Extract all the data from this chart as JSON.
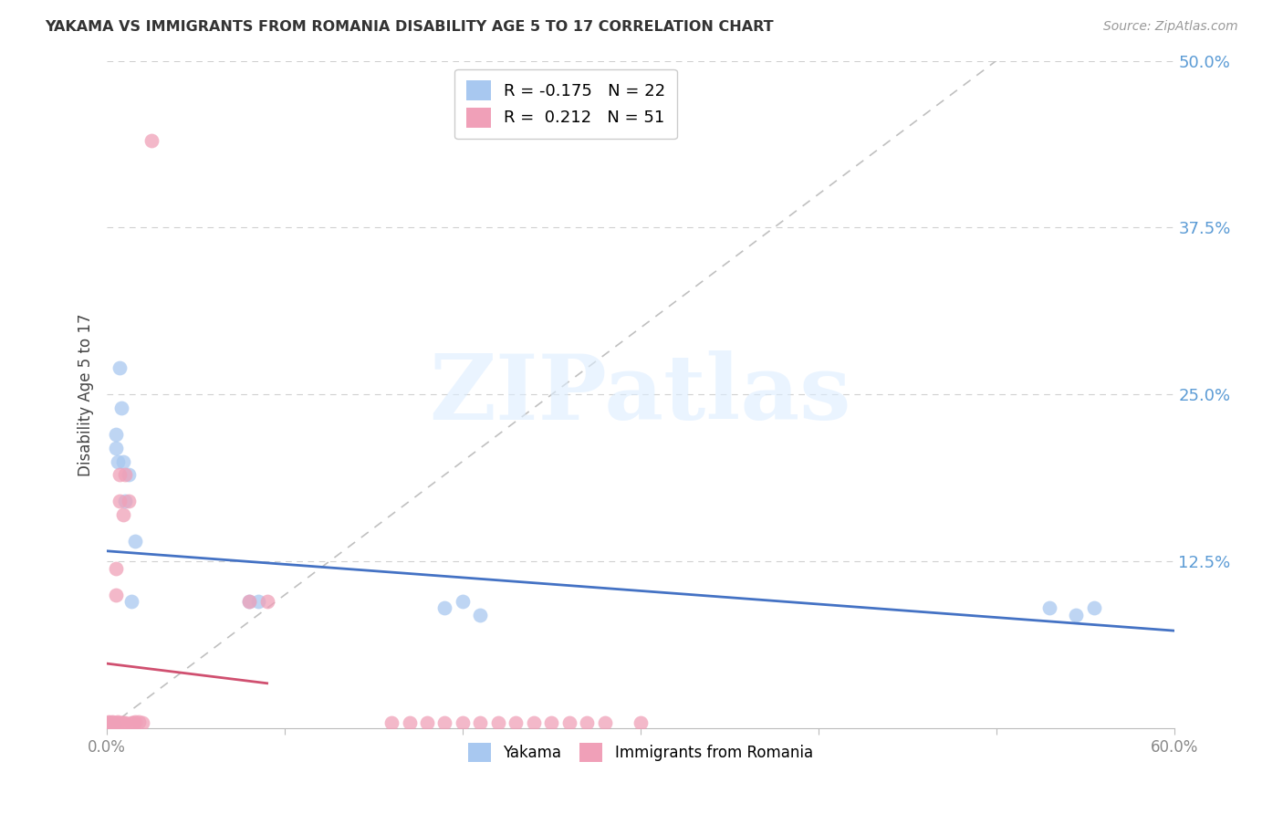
{
  "title": "YAKAMA VS IMMIGRANTS FROM ROMANIA DISABILITY AGE 5 TO 17 CORRELATION CHART",
  "source": "Source: ZipAtlas.com",
  "ylabel": "Disability Age 5 to 17",
  "xlim": [
    0.0,
    0.6
  ],
  "ylim": [
    0.0,
    0.5
  ],
  "yticks": [
    0.0,
    0.125,
    0.25,
    0.375,
    0.5
  ],
  "yticklabels": [
    "",
    "12.5%",
    "25.0%",
    "37.5%",
    "50.0%"
  ],
  "xticklabels_show": [
    "0.0%",
    "60.0%"
  ],
  "blue_color": "#a8c8f0",
  "pink_color": "#f0a0b8",
  "blue_line_color": "#4472c4",
  "pink_line_color": "#d05070",
  "ytick_color": "#5b9bd5",
  "xtick_color": "#888888",
  "grid_color": "#d0d0d0",
  "diagonal_color": "#c0c0c0",
  "legend_blue_label": "R = -0.175   N = 22",
  "legend_pink_label": "R =  0.212   N = 51",
  "bottom_legend_blue": "Yakama",
  "bottom_legend_pink": "Immigrants from Romania",
  "watermark": "ZIPatlas",
  "blue_x": [
    0.001,
    0.002,
    0.003,
    0.004,
    0.005,
    0.005,
    0.006,
    0.007,
    0.008,
    0.009,
    0.01,
    0.012,
    0.014,
    0.016,
    0.08,
    0.085,
    0.19,
    0.2,
    0.21,
    0.53,
    0.545,
    0.555
  ],
  "blue_y": [
    0.004,
    0.003,
    0.004,
    0.003,
    0.21,
    0.22,
    0.2,
    0.27,
    0.24,
    0.2,
    0.17,
    0.19,
    0.095,
    0.14,
    0.095,
    0.095,
    0.09,
    0.095,
    0.085,
    0.09,
    0.085,
    0.09
  ],
  "pink_x": [
    0.001,
    0.001,
    0.001,
    0.001,
    0.001,
    0.001,
    0.002,
    0.002,
    0.002,
    0.002,
    0.003,
    0.003,
    0.003,
    0.004,
    0.004,
    0.004,
    0.005,
    0.005,
    0.005,
    0.006,
    0.006,
    0.007,
    0.007,
    0.008,
    0.009,
    0.009,
    0.01,
    0.01,
    0.012,
    0.014,
    0.015,
    0.016,
    0.018,
    0.02,
    0.025,
    0.08,
    0.09,
    0.16,
    0.17,
    0.18,
    0.19,
    0.2,
    0.21,
    0.22,
    0.23,
    0.24,
    0.25,
    0.26,
    0.27,
    0.28,
    0.3
  ],
  "pink_y": [
    0.004,
    0.003,
    0.002,
    0.004,
    0.003,
    0.005,
    0.004,
    0.003,
    0.002,
    0.004,
    0.003,
    0.004,
    0.005,
    0.003,
    0.004,
    0.003,
    0.1,
    0.12,
    0.004,
    0.004,
    0.005,
    0.17,
    0.19,
    0.004,
    0.16,
    0.004,
    0.19,
    0.004,
    0.17,
    0.004,
    0.004,
    0.005,
    0.005,
    0.004,
    0.44,
    0.095,
    0.095,
    0.004,
    0.004,
    0.004,
    0.004,
    0.004,
    0.004,
    0.004,
    0.004,
    0.004,
    0.004,
    0.004,
    0.004,
    0.004,
    0.004
  ]
}
